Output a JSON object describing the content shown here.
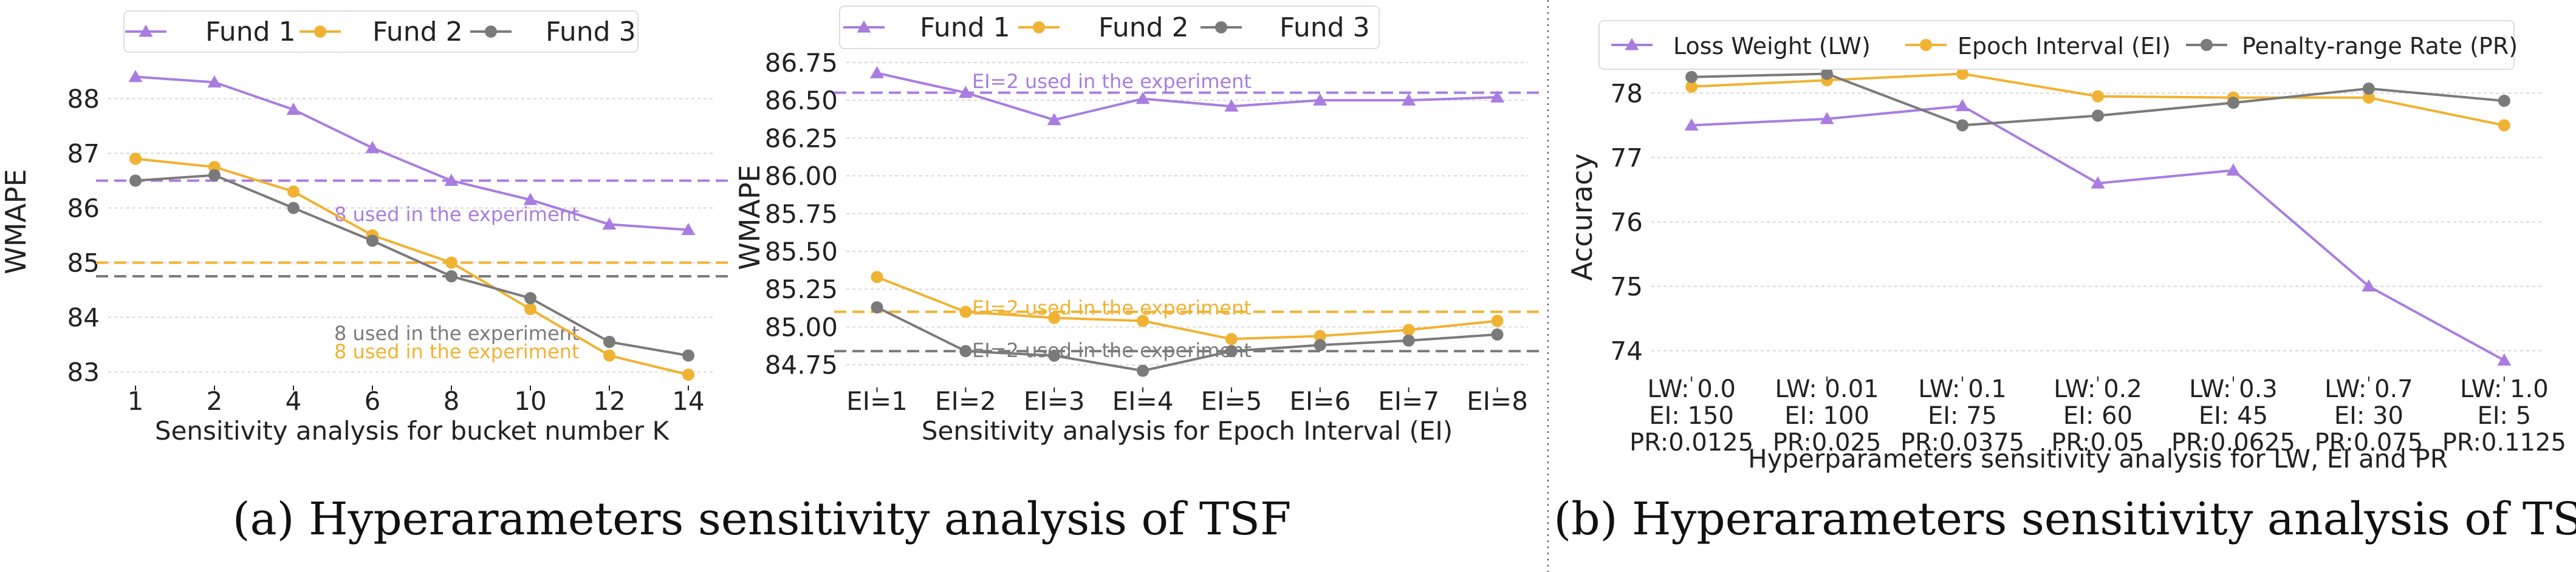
{
  "colors": {
    "fund1": "#a97de0",
    "fund2": "#f0b232",
    "fund3": "#7a7a7a",
    "axis": "#222222",
    "grid": "#d8d8d8"
  },
  "captions": {
    "a": "(a) Hyperarameters sensitivity analysis of TSF",
    "b": "(b) Hyperarameters sensitivity analysis of TSC"
  },
  "chart_data": [
    {
      "id": "tsf_bucket",
      "type": "line",
      "title": "",
      "xlabel": "Sensitivity analysis for bucket number K",
      "ylabel": "WMAPE",
      "categories": [
        "1",
        "2",
        "4",
        "6",
        "8",
        "10",
        "12",
        "14"
      ],
      "ylim": [
        82.75,
        88.75
      ],
      "yticks": [
        "83",
        "84",
        "85",
        "86",
        "87",
        "88"
      ],
      "legend": "top",
      "series": [
        {
          "name": "Fund 1",
          "marker": "triangle",
          "values": [
            88.4,
            88.3,
            87.8,
            87.1,
            86.5,
            86.15,
            85.7,
            85.6
          ]
        },
        {
          "name": "Fund 2",
          "marker": "circle",
          "values": [
            86.9,
            86.75,
            86.3,
            85.5,
            85.0,
            84.15,
            83.3,
            82.95
          ]
        },
        {
          "name": "Fund 3",
          "marker": "circle",
          "values": [
            86.5,
            86.6,
            86.0,
            85.4,
            84.75,
            84.35,
            83.55,
            83.3
          ]
        }
      ],
      "reference_lines": [
        {
          "series": "Fund 1",
          "value": 86.5,
          "label": "8 used in the experiment"
        },
        {
          "series": "Fund 2",
          "value": 85.0,
          "label": "8 used in the experiment"
        },
        {
          "series": "Fund 3",
          "value": 84.75,
          "label": "8 used in the experiment"
        }
      ]
    },
    {
      "id": "tsf_epoch",
      "type": "line",
      "title": "",
      "xlabel": "Sensitivity analysis for Epoch Interval (EI)",
      "ylabel": "WMAPE",
      "categories": [
        "EI=1",
        "EI=2",
        "EI=3",
        "EI=4",
        "EI=5",
        "EI=6",
        "EI=7",
        "EI=8"
      ],
      "ylim": [
        84.6,
        86.85
      ],
      "yticks": [
        "84.75",
        "85.00",
        "85.25",
        "85.50",
        "85.75",
        "86.00",
        "86.25",
        "86.50",
        "86.75"
      ],
      "legend": "top",
      "series": [
        {
          "name": "Fund 1",
          "marker": "triangle",
          "values": [
            86.68,
            86.55,
            86.37,
            86.51,
            86.46,
            86.5,
            86.5,
            86.52
          ]
        },
        {
          "name": "Fund 2",
          "marker": "circle",
          "values": [
            85.33,
            85.1,
            85.06,
            85.04,
            84.92,
            84.94,
            84.98,
            85.04
          ]
        },
        {
          "name": "Fund 3",
          "marker": "circle",
          "values": [
            85.13,
            84.84,
            84.81,
            84.71,
            84.84,
            84.88,
            84.91,
            84.95
          ]
        }
      ],
      "reference_lines": [
        {
          "series": "Fund 1",
          "value": 86.55,
          "label": "EI=2 used in the experiment"
        },
        {
          "series": "Fund 2",
          "value": 85.1,
          "label": "EI=2 used in the experiment"
        },
        {
          "series": "Fund 3",
          "value": 84.84,
          "label": "EI=2 used in the experiment"
        }
      ]
    },
    {
      "id": "tsc_params",
      "type": "line",
      "title": "",
      "xlabel": "Hyperparameters sensitivity analysis for LW, EI and PR",
      "ylabel": "Accuracy",
      "categories": [
        [
          "LW: 0.0",
          "EI: 150",
          "PR:0.0125"
        ],
        [
          "LW: 0.01",
          "EI: 100",
          "PR:0.025"
        ],
        [
          "LW: 0.1",
          "EI: 75",
          "PR:0.0375"
        ],
        [
          "LW: 0.2",
          "EI: 60",
          "PR:0.05"
        ],
        [
          "LW: 0.3",
          "EI: 45",
          "PR:0.0625"
        ],
        [
          "LW: 0.7",
          "EI: 30",
          "PR:0.075"
        ],
        [
          "LW: 1.0",
          "EI: 5",
          "PR:0.1125"
        ]
      ],
      "ylim": [
        73.6,
        78.55
      ],
      "yticks": [
        "74",
        "75",
        "76",
        "77",
        "78"
      ],
      "legend": "top",
      "series": [
        {
          "name": "Loss Weight (LW)",
          "marker": "triangle",
          "values": [
            77.5,
            77.6,
            77.8,
            76.6,
            76.8,
            75.0,
            73.85
          ]
        },
        {
          "name": "Epoch Interval (EI)",
          "marker": "circle",
          "values": [
            78.1,
            78.2,
            78.3,
            77.95,
            77.93,
            77.93,
            77.5
          ]
        },
        {
          "name": "Penalty-range Rate (PR)",
          "marker": "circle",
          "values": [
            78.25,
            78.3,
            77.5,
            77.65,
            77.85,
            78.07,
            77.88
          ]
        }
      ]
    }
  ]
}
